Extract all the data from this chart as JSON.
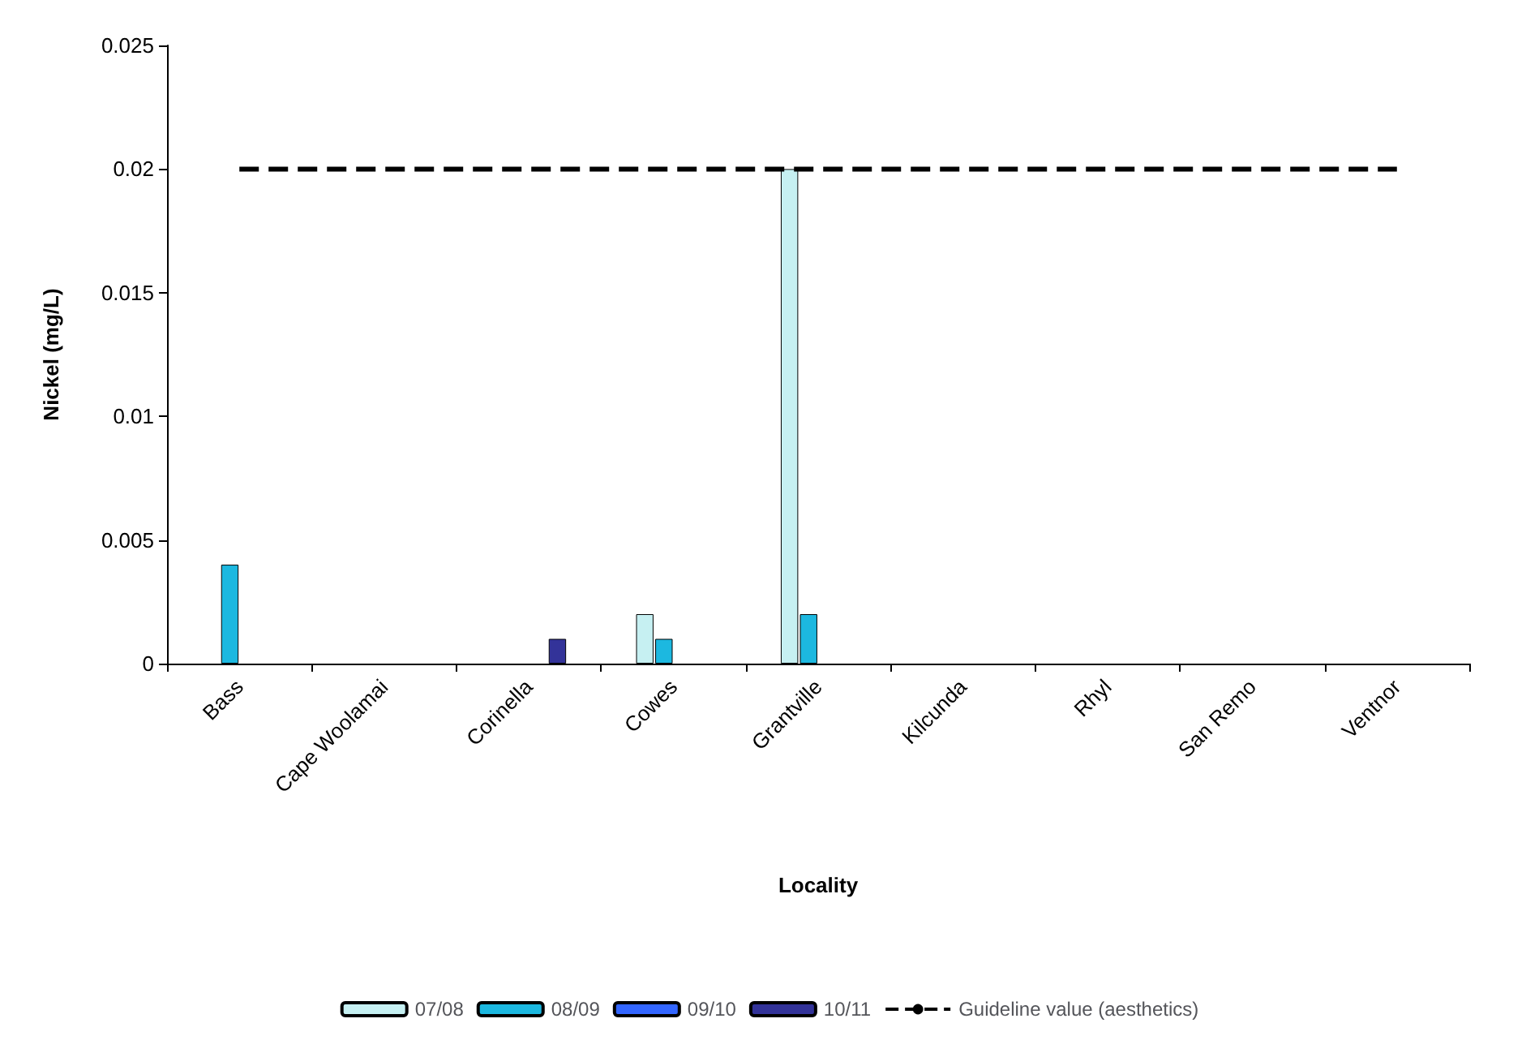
{
  "chart_data": {
    "type": "bar",
    "xlabel": "Locality",
    "ylabel": "Nickel (mg/L)",
    "categories": [
      "Bass",
      "Cape Woolamai",
      "Corinella",
      "Cowes",
      "Grantville",
      "Kilcunda",
      "Rhyl",
      "San Remo",
      "Ventnor"
    ],
    "series": [
      {
        "name": "07/08",
        "color": "#c6f0f2",
        "values": [
          null,
          null,
          null,
          0.002,
          0.02,
          null,
          null,
          null,
          null
        ]
      },
      {
        "name": "08/09",
        "color": "#1cb8e0",
        "values": [
          0.004,
          null,
          null,
          0.001,
          0.002,
          null,
          null,
          null,
          null
        ]
      },
      {
        "name": "09/10",
        "color": "#3366ff",
        "values": [
          null,
          null,
          null,
          null,
          null,
          null,
          null,
          null,
          null
        ]
      },
      {
        "name": "10/11",
        "color": "#333399",
        "values": [
          null,
          null,
          0.001,
          null,
          null,
          null,
          null,
          null,
          null
        ]
      },
      {
        "name": "Guideline value (aesthetics)",
        "type": "line",
        "color": "#000000",
        "line_style": "dashed",
        "values": [
          0.02,
          0.02,
          0.02,
          0.02,
          0.02,
          0.02,
          0.02,
          0.02,
          0.02
        ]
      }
    ],
    "ylim": [
      0,
      0.025
    ],
    "yticks": [
      0,
      0.005,
      0.01,
      0.015,
      0.02,
      0.025
    ],
    "grid": false,
    "legend": "bottom",
    "marker": "none"
  }
}
